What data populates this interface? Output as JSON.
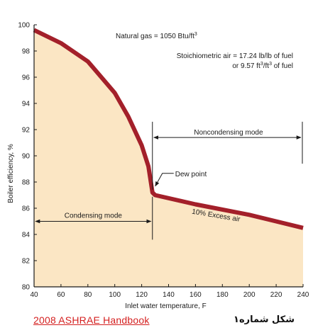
{
  "chart_data": {
    "type": "area",
    "title": "",
    "xlabel": "Inlet water temperature, F",
    "ylabel": "Boiler efficiency, %",
    "xlim": [
      40,
      240
    ],
    "ylim": [
      80,
      100
    ],
    "x_ticks": [
      40,
      60,
      80,
      100,
      120,
      140,
      160,
      180,
      200,
      220,
      240
    ],
    "y_ticks": [
      80,
      82,
      84,
      86,
      88,
      90,
      92,
      94,
      96,
      98,
      100
    ],
    "series": [
      {
        "x": [
          40,
          60,
          80,
          100,
          110,
          120,
          125,
          128,
          130,
          160,
          200,
          240
        ],
        "y": [
          99.6,
          98.6,
          97.2,
          94.8,
          93.0,
          90.8,
          89.2,
          87.2,
          87.0,
          86.3,
          85.5,
          84.5
        ]
      }
    ],
    "annotations": {
      "gas": "Natural gas = 1050 Btu/ft",
      "gas_sup": "3",
      "air_line1": "Stoichiometric air = 17.24 lb/lb of fuel",
      "air_line2_pre": "or 9.57 ft",
      "air_line2_sup1": "3",
      "air_line2_mid": "/ft",
      "air_line2_sup2": "3",
      "air_line2_post": " of fuel",
      "dew_point": "Dew point",
      "condensing": "Condensing mode",
      "noncondensing": "Noncondensing mode",
      "excess_air": "10% Excess air"
    },
    "regions": {
      "dew_point_x": 128,
      "dew_point_y": 87.2,
      "noncondensing_arrow_y": 91.4,
      "condensing_arrow_y": 85.0
    },
    "colors": {
      "curve": "#a3202a",
      "fill": "#fbe6c4",
      "axis": "#1a1a1a",
      "grid_frame": "#1a1a1a"
    },
    "grid": false,
    "legend": "none"
  },
  "source_label": "2008 ASHRAE Handbook",
  "caption": "شکل شماره۱"
}
